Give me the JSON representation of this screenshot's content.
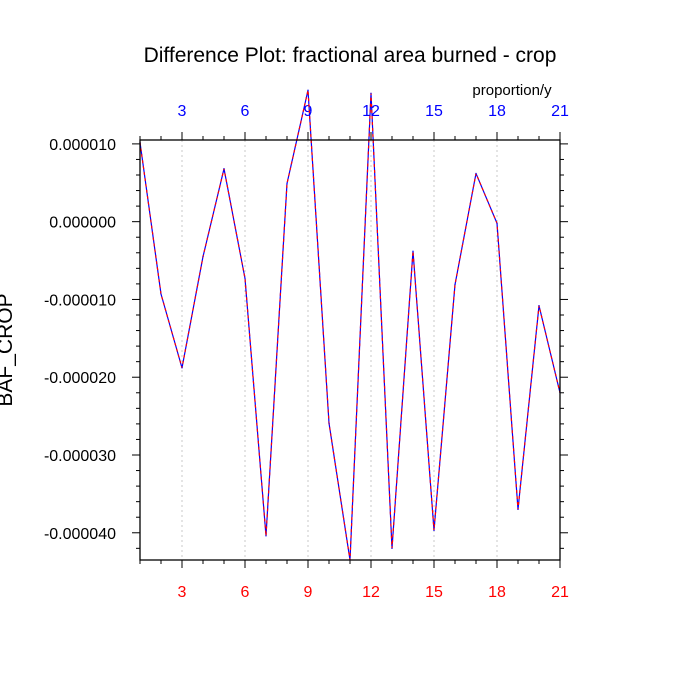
{
  "chart_data": {
    "type": "line",
    "title": "Difference Plot: fractional area burned - crop",
    "units_label": "proportion/y",
    "ylabel": "BAF_CROP",
    "xlim": [
      1,
      21
    ],
    "ylim": [
      -4.35e-05,
      1.05e-05
    ],
    "x_ticks": [
      3,
      6,
      9,
      12,
      15,
      18,
      21
    ],
    "x_tick_labels_top": [
      "3",
      "6",
      "9",
      "12",
      "15",
      "18",
      "21"
    ],
    "x_tick_labels_bottom": [
      "3",
      "6",
      "9",
      "12",
      "15",
      "18",
      "21"
    ],
    "y_ticks": [
      1e-05,
      0.0,
      -1e-05,
      -2e-05,
      -3e-05,
      -4e-05
    ],
    "y_tick_labels": [
      "0.000010",
      "0.000000",
      "-0.000010",
      "-0.000020",
      "-0.000030",
      "-0.000040"
    ],
    "grid": "vertical-dotted",
    "series": [
      {
        "line_colors": [
          "#0000ff",
          "#ff0000"
        ],
        "line_style": "dashed",
        "x": [
          1,
          2,
          3,
          4,
          5,
          6,
          7,
          8,
          9,
          10,
          11,
          12,
          13,
          14,
          15,
          16,
          17,
          18,
          19,
          20,
          21
        ],
        "values": [
          1.02e-05,
          -9.3e-06,
          -1.88e-05,
          -4.5e-06,
          6.8e-06,
          -7.3e-06,
          -4.04e-05,
          4.9e-06,
          1.69e-05,
          -2.59e-05,
          -4.35e-05,
          1.65e-05,
          -4.2e-05,
          -3.8e-06,
          -3.97e-05,
          -8.1e-06,
          6.2e-06,
          -2e-07,
          -3.7e-05,
          -1.08e-05,
          -2.2e-05
        ]
      }
    ]
  }
}
